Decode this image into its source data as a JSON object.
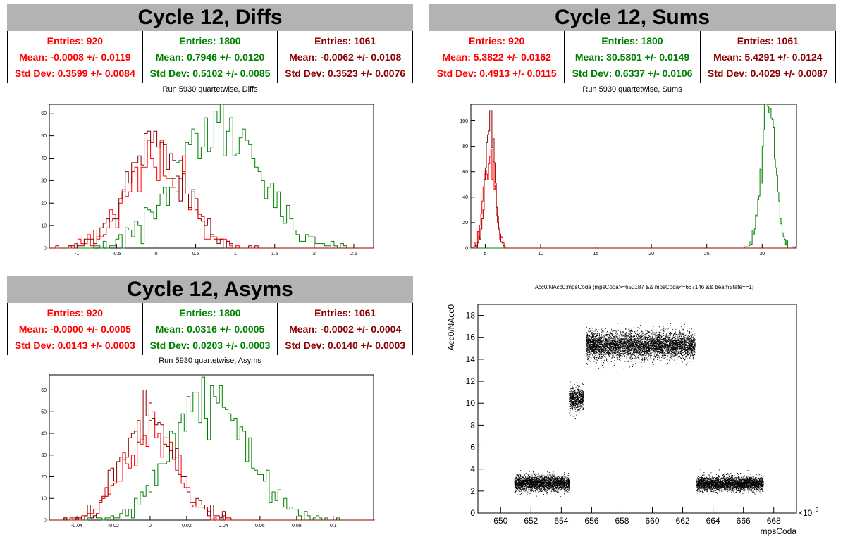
{
  "colors": {
    "red": "#ff0000",
    "green": "#008000",
    "darkred": "#8b0000",
    "title_bg": "#b3b3b3"
  },
  "panels": [
    {
      "title": "Cycle 12, Diffs",
      "subtitle": "Run 5930 quartetwise, Diffs",
      "stats": [
        {
          "entries": "Entries: 920",
          "mean": "Mean: -0.0008 +/- 0.0119",
          "std": "Std Dev: 0.3599 +/- 0.0084",
          "color": "#ff0000"
        },
        {
          "entries": "Entries: 1800",
          "mean": "Mean: 0.7946 +/- 0.0120",
          "std": "Std Dev: 0.5102 +/- 0.0085",
          "color": "#008000"
        },
        {
          "entries": "Entries: 1061",
          "mean": "Mean: -0.0062 +/- 0.0108",
          "std": "Std Dev: 0.3523 +/- 0.0076",
          "color": "#8b0000"
        }
      ]
    },
    {
      "title": "Cycle 12, Sums",
      "subtitle": "Run 5930 quartetwise, Sums",
      "stats": [
        {
          "entries": "Entries: 920",
          "mean": "Mean: 5.3822 +/- 0.0162",
          "std": "Std Dev: 0.4913 +/- 0.0115",
          "color": "#ff0000"
        },
        {
          "entries": "Entries: 1800",
          "mean": "Mean: 30.5801 +/- 0.0149",
          "std": "Std Dev: 0.6337 +/- 0.0106",
          "color": "#008000"
        },
        {
          "entries": "Entries: 1061",
          "mean": "Mean: 5.4291 +/- 0.0124",
          "std": "Std Dev: 0.4029 +/- 0.0087",
          "color": "#8b0000"
        }
      ]
    },
    {
      "title": "Cycle 12, Asyms",
      "subtitle": "Run 5930 quartetwise, Asyms",
      "stats": [
        {
          "entries": "Entries: 920",
          "mean": "Mean: -0.0000 +/- 0.0005",
          "std": "Std Dev: 0.0143 +/- 0.0003",
          "color": "#ff0000"
        },
        {
          "entries": "Entries: 1800",
          "mean": "Mean: 0.0316 +/- 0.0005",
          "std": "Std Dev: 0.0203 +/- 0.0003",
          "color": "#008000"
        },
        {
          "entries": "Entries: 1061",
          "mean": "Mean: -0.0002 +/- 0.0004",
          "std": "Std Dev: 0.0140 +/- 0.0003",
          "color": "#8b0000"
        }
      ]
    }
  ],
  "chart_data": [
    {
      "type": "histogram",
      "xlim": [
        -1.35,
        2.75
      ],
      "ylim": [
        0,
        64
      ],
      "xticks": [
        -1,
        -0.5,
        0,
        0.5,
        1,
        1.5,
        2,
        2.5
      ],
      "xtick_labels": [
        "-1",
        "-0.5",
        "0",
        "0.5",
        "1",
        "1.5",
        "2",
        "2.5"
      ],
      "yticks": [
        0,
        10,
        20,
        30,
        40,
        50,
        60
      ],
      "ytick_labels": [
        "0",
        "10",
        "20",
        "30",
        "40",
        "50",
        "60"
      ],
      "series": [
        {
          "color": "#008000",
          "n": 1800,
          "mean": 0.7946,
          "sd": 0.5102,
          "bin": 0.04,
          "seed": 11
        },
        {
          "color": "#ff0000",
          "n": 920,
          "mean": -0.0008,
          "sd": 0.3599,
          "bin": 0.04,
          "seed": 22
        },
        {
          "color": "#8b0000",
          "n": 1061,
          "mean": -0.0062,
          "sd": 0.3523,
          "bin": 0.04,
          "seed": 33
        }
      ]
    },
    {
      "type": "histogram",
      "xlim": [
        3.7,
        33.1
      ],
      "ylim": [
        0,
        113
      ],
      "xticks": [
        5,
        10,
        15,
        20,
        25,
        30
      ],
      "xtick_labels": [
        "5",
        "10",
        "15",
        "20",
        "25",
        "30"
      ],
      "yticks": [
        0,
        20,
        40,
        60,
        80,
        100
      ],
      "ytick_labels": [
        "0",
        "20",
        "40",
        "60",
        "80",
        "100"
      ],
      "series": [
        {
          "color": "#008000",
          "n": 1800,
          "mean": 30.58,
          "sd": 0.6337,
          "bin": 0.1,
          "seed": 44
        },
        {
          "color": "#ff0000",
          "n": 920,
          "mean": 5.3822,
          "sd": 0.4913,
          "bin": 0.1,
          "seed": 55
        },
        {
          "color": "#8b0000",
          "n": 1061,
          "mean": 5.4291,
          "sd": 0.4029,
          "bin": 0.1,
          "seed": 66
        }
      ]
    },
    {
      "type": "histogram",
      "xlim": [
        -0.055,
        0.122
      ],
      "ylim": [
        0,
        67
      ],
      "xticks": [
        -0.04,
        -0.02,
        0,
        0.02,
        0.04,
        0.06,
        0.08,
        0.1
      ],
      "xtick_labels": [
        "-0.04",
        "-0.02",
        "0",
        "0.02",
        "0.04",
        "0.06",
        "0.08",
        "0.1"
      ],
      "yticks": [
        0,
        10,
        20,
        30,
        40,
        50,
        60
      ],
      "ytick_labels": [
        "0",
        "10",
        "20",
        "30",
        "40",
        "50",
        "60"
      ],
      "series": [
        {
          "color": "#008000",
          "n": 1800,
          "mean": 0.0316,
          "sd": 0.0203,
          "bin": 0.0016,
          "seed": 77
        },
        {
          "color": "#ff0000",
          "n": 920,
          "mean": -0.0,
          "sd": 0.0143,
          "bin": 0.0016,
          "seed": 88
        },
        {
          "color": "#8b0000",
          "n": 1061,
          "mean": -0.0002,
          "sd": 0.014,
          "bin": 0.0016,
          "seed": 99
        }
      ]
    },
    {
      "type": "scatter",
      "title": "Acc0/NAcc0:mpsCoda {mpsCoda>=650187 && mpsCoda<=667146 && beamState==1}",
      "xlabel": "mpsCoda",
      "ylabel": "Acc0/NAcc0",
      "x_multiplier": "×10",
      "x_multiplier_exp": "3",
      "xlim": [
        648.5,
        669.5
      ],
      "ylim": [
        0,
        19
      ],
      "xticks": [
        650,
        652,
        654,
        656,
        658,
        660,
        662,
        664,
        666,
        668
      ],
      "xtick_labels": [
        "650",
        "652",
        "654",
        "656",
        "658",
        "660",
        "662",
        "664",
        "666",
        "668"
      ],
      "yticks": [
        0,
        2,
        4,
        6,
        8,
        10,
        12,
        14,
        16,
        18
      ],
      "ytick_labels": [
        "0",
        "2",
        "4",
        "6",
        "8",
        "10",
        "12",
        "14",
        "16",
        "18"
      ],
      "clusters": [
        {
          "x": [
            650.9,
            654.5
          ],
          "y_mean": 2.75,
          "y_sd": 0.35,
          "n": 2600
        },
        {
          "x": [
            654.5,
            655.45
          ],
          "y_mean": 10.4,
          "y_sd": 0.55,
          "n": 700
        },
        {
          "x": [
            655.6,
            662.8
          ],
          "y_mean": 15.3,
          "y_sd": 0.6,
          "n": 5200
        },
        {
          "x": [
            662.9,
            667.3
          ],
          "y_mean": 2.7,
          "y_sd": 0.33,
          "n": 3000
        }
      ]
    }
  ]
}
